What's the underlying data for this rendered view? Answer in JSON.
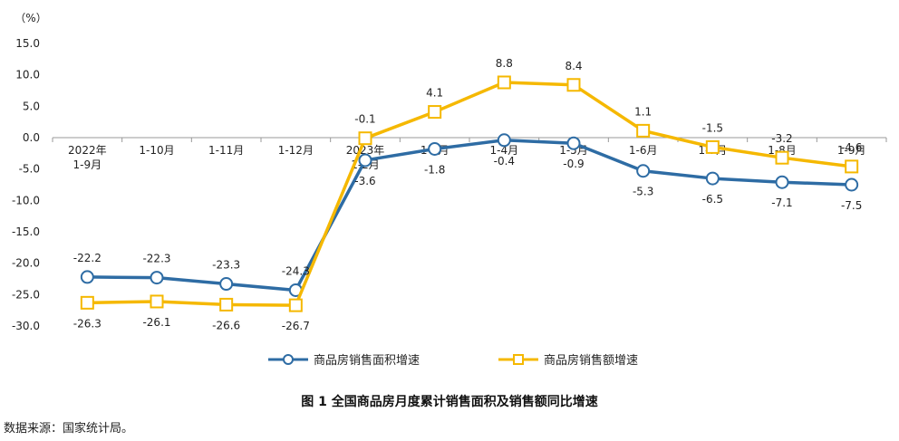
{
  "chart_data": {
    "type": "line",
    "unit_label": "（%）",
    "title": "图 1  全国商品房月度累计销售面积及销售额同比增速",
    "categories": [
      [
        "2022年",
        "1-9月"
      ],
      [
        "1-10月"
      ],
      [
        "1-11月"
      ],
      [
        "1-12月"
      ],
      [
        "2023年",
        "1-2月"
      ],
      [
        "1-3月"
      ],
      [
        "1-4月"
      ],
      [
        "1-5月"
      ],
      [
        "1-6月"
      ],
      [
        "1-7月"
      ],
      [
        "1-8月"
      ],
      [
        "1-9月"
      ]
    ],
    "ylim": [
      -30,
      15
    ],
    "yticks": [
      "15.0",
      "10.0",
      "5.0",
      "0.0",
      "-5.0",
      "-10.0",
      "-15.0",
      "-20.0",
      "-25.0",
      "-30.0"
    ],
    "ytick_values": [
      15,
      10,
      5,
      0,
      -5,
      -10,
      -15,
      -20,
      -25,
      -30
    ],
    "series": [
      {
        "name": "商品房销售面积增速",
        "color": "#2E6CA4",
        "marker": "circle",
        "values": [
          -22.2,
          -22.3,
          -23.3,
          -24.3,
          -3.6,
          -1.8,
          -0.4,
          -0.9,
          -5.3,
          -6.5,
          -7.1,
          -7.5
        ],
        "labels": [
          "-22.2",
          "-22.3",
          "-23.3",
          "-24.3",
          "-3.6",
          "-1.8",
          "-0.4",
          "-0.9",
          "-5.3",
          "-6.5",
          "-7.1",
          "-7.5"
        ],
        "label_pos": [
          "above",
          "above",
          "above",
          "above",
          "below",
          "below",
          "below",
          "below",
          "below",
          "below",
          "below",
          "below"
        ]
      },
      {
        "name": "商品房销售额增速",
        "color": "#F5B800",
        "marker": "square",
        "values": [
          -26.3,
          -26.1,
          -26.6,
          -26.7,
          -0.1,
          4.1,
          8.8,
          8.4,
          1.1,
          -1.5,
          -3.2,
          -4.6
        ],
        "labels": [
          "-26.3",
          "-26.1",
          "-26.6",
          "-26.7",
          "-0.1",
          "4.1",
          "8.8",
          "8.4",
          "1.1",
          "-1.5",
          "-3.2",
          "-4.6"
        ],
        "label_pos": [
          "below",
          "below",
          "below",
          "below",
          "above",
          "above",
          "above",
          "above",
          "above",
          "above",
          "above",
          "above"
        ]
      }
    ]
  },
  "source_note": "数据来源：国家统计局。"
}
